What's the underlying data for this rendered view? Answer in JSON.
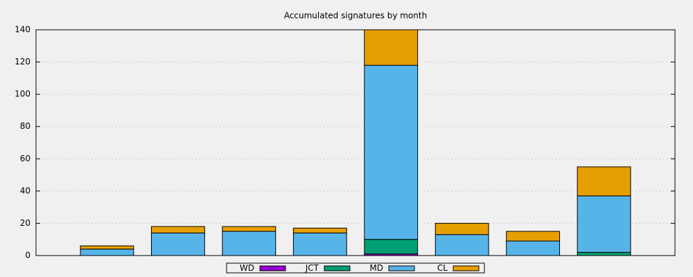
{
  "chart_data": {
    "type": "stacked-bar",
    "title": "Accumulated signatures by month",
    "categories": [
      null,
      null,
      null,
      null,
      null,
      null,
      null,
      null
    ],
    "xlim": [
      -1,
      8
    ],
    "series": [
      {
        "name": "WD",
        "color": "#9400d3",
        "values": [
          0,
          0,
          0,
          0,
          1,
          0,
          0,
          0
        ]
      },
      {
        "name": "JCT",
        "color": "#009e73",
        "values": [
          0,
          0,
          0,
          0,
          9,
          0,
          0,
          2
        ]
      },
      {
        "name": "MD",
        "color": "#56b4e9",
        "values": [
          4,
          14,
          15,
          14,
          108,
          13,
          9,
          35
        ]
      },
      {
        "name": "CL",
        "color": "#e69f00",
        "values": [
          2,
          4,
          3,
          3,
          22,
          7,
          6,
          18
        ]
      }
    ],
    "ylim": [
      0,
      140
    ],
    "yticks": [
      0,
      20,
      40,
      60,
      80,
      100,
      120,
      140
    ],
    "grid": true,
    "legend": "bottom"
  }
}
